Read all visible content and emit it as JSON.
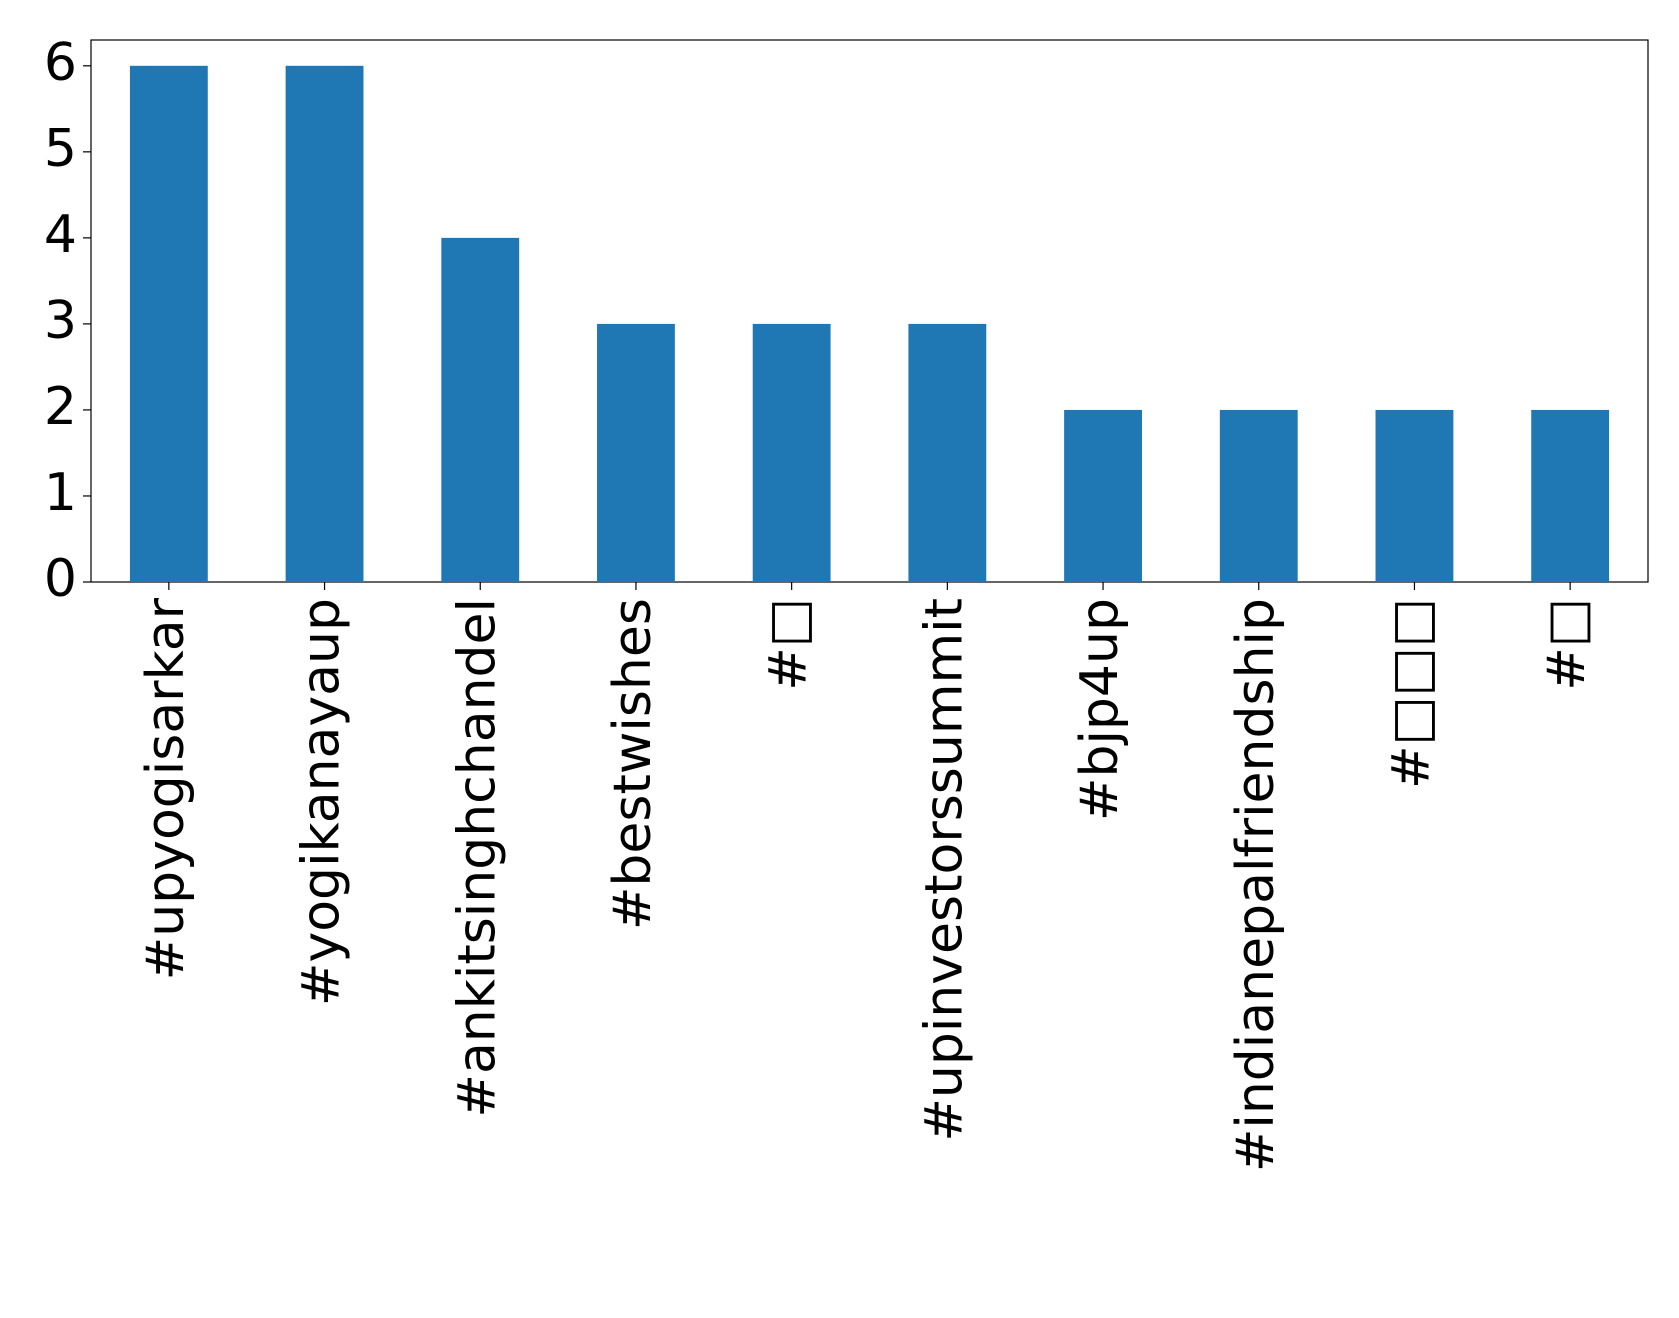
{
  "chart_data": {
    "type": "bar",
    "categories": [
      "#upyogisarkar",
      "#yogikanayaup",
      "#ankitsinghchandel",
      "#bestwishes",
      "#□",
      "#upinvestorssummit",
      "#bjp4up",
      "#indianepalfriendship",
      "#□□□",
      "#□"
    ],
    "values": [
      6,
      6,
      4,
      3,
      3,
      3,
      2,
      2,
      2,
      2
    ],
    "color": "#1f77b4",
    "ylim": [
      0,
      6.3
    ],
    "yticks": [
      0,
      1,
      2,
      3,
      4,
      5,
      6
    ],
    "grid": false
  }
}
